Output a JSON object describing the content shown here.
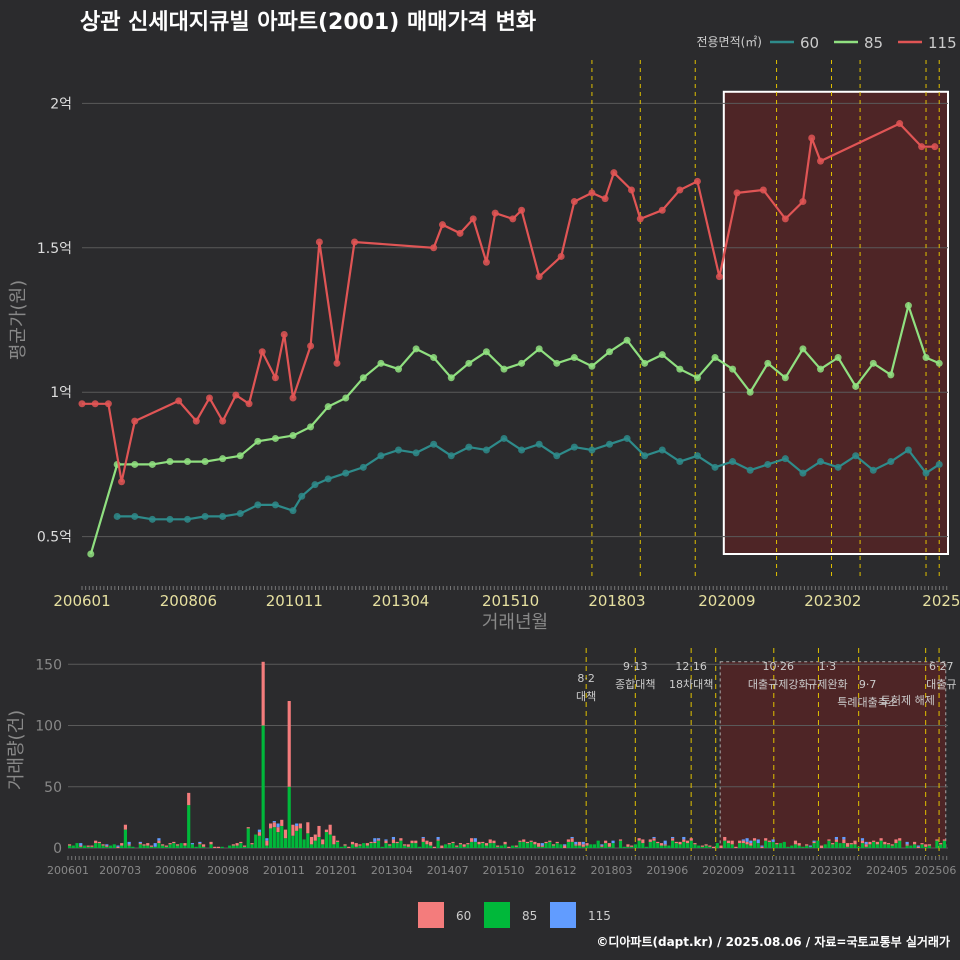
{
  "title": "상관 신세대지큐빌 아파트(2001) 매매가격 변화",
  "credit": "©디아파트(dapt.kr) / 2025.08.06 / 자료=국토교통부 실거래가",
  "colors": {
    "background": "#2b2b2d",
    "grid": "#5a5a5a",
    "series_60": "#2e8b8b",
    "series_85": "#90e080",
    "series_115": "#e05555",
    "bar_60": "#f47c7c",
    "bar_85": "#00b83a",
    "bar_115": "#619cff",
    "policy_line": "#e0c000",
    "highlight_box": "#6b2020"
  },
  "chart_data": [
    {
      "type": "line",
      "ylabel": "평균가(원)",
      "xlabel": "거래년월",
      "legend_title": "전용면적(㎡)",
      "legend_position": "top-right",
      "x_ticks": [
        "200601",
        "200806",
        "201011",
        "201304",
        "201510",
        "201803",
        "202009",
        "202302",
        "2025"
      ],
      "y_ticks": [
        {
          "value": 0.5,
          "label": "0.5억"
        },
        {
          "value": 1.0,
          "label": "1억"
        },
        {
          "value": 1.5,
          "label": "1.5억"
        },
        {
          "value": 2.0,
          "label": "2억"
        }
      ],
      "ylim": [
        0.35,
        2.15
      ],
      "xlim": [
        2006.0,
        2025.7
      ],
      "highlight_range": [
        2020.6,
        2025.7
      ],
      "policy_lines": [
        2017.6,
        2018.7,
        2019.95,
        2021.8,
        2023.05,
        2023.7,
        2025.2,
        2025.5
      ],
      "series": [
        {
          "name": "60",
          "points": [
            [
              2006.8,
              0.57
            ],
            [
              2007.2,
              0.57
            ],
            [
              2007.6,
              0.56
            ],
            [
              2008.0,
              0.56
            ],
            [
              2008.4,
              0.56
            ],
            [
              2008.8,
              0.57
            ],
            [
              2009.2,
              0.57
            ],
            [
              2009.6,
              0.58
            ],
            [
              2010.0,
              0.61
            ],
            [
              2010.4,
              0.61
            ],
            [
              2010.8,
              0.59
            ],
            [
              2011.0,
              0.64
            ],
            [
              2011.3,
              0.68
            ],
            [
              2011.6,
              0.7
            ],
            [
              2012.0,
              0.72
            ],
            [
              2012.4,
              0.74
            ],
            [
              2012.8,
              0.78
            ],
            [
              2013.2,
              0.8
            ],
            [
              2013.6,
              0.79
            ],
            [
              2014.0,
              0.82
            ],
            [
              2014.4,
              0.78
            ],
            [
              2014.8,
              0.81
            ],
            [
              2015.2,
              0.8
            ],
            [
              2015.6,
              0.84
            ],
            [
              2016.0,
              0.8
            ],
            [
              2016.4,
              0.82
            ],
            [
              2016.8,
              0.78
            ],
            [
              2017.2,
              0.81
            ],
            [
              2017.6,
              0.8
            ],
            [
              2018.0,
              0.82
            ],
            [
              2018.4,
              0.84
            ],
            [
              2018.8,
              0.78
            ],
            [
              2019.2,
              0.8
            ],
            [
              2019.6,
              0.76
            ],
            [
              2020.0,
              0.78
            ],
            [
              2020.4,
              0.74
            ],
            [
              2020.8,
              0.76
            ],
            [
              2021.2,
              0.73
            ],
            [
              2021.6,
              0.75
            ],
            [
              2022.0,
              0.77
            ],
            [
              2022.4,
              0.72
            ],
            [
              2022.8,
              0.76
            ],
            [
              2023.2,
              0.74
            ],
            [
              2023.6,
              0.78
            ],
            [
              2024.0,
              0.73
            ],
            [
              2024.4,
              0.76
            ],
            [
              2024.8,
              0.8
            ],
            [
              2025.2,
              0.72
            ],
            [
              2025.5,
              0.75
            ]
          ]
        },
        {
          "name": "85",
          "points": [
            [
              2006.2,
              0.44
            ],
            [
              2006.8,
              0.75
            ],
            [
              2007.2,
              0.75
            ],
            [
              2007.6,
              0.75
            ],
            [
              2008.0,
              0.76
            ],
            [
              2008.4,
              0.76
            ],
            [
              2008.8,
              0.76
            ],
            [
              2009.2,
              0.77
            ],
            [
              2009.6,
              0.78
            ],
            [
              2010.0,
              0.83
            ],
            [
              2010.4,
              0.84
            ],
            [
              2010.8,
              0.85
            ],
            [
              2011.2,
              0.88
            ],
            [
              2011.6,
              0.95
            ],
            [
              2012.0,
              0.98
            ],
            [
              2012.4,
              1.05
            ],
            [
              2012.8,
              1.1
            ],
            [
              2013.2,
              1.08
            ],
            [
              2013.6,
              1.15
            ],
            [
              2014.0,
              1.12
            ],
            [
              2014.4,
              1.05
            ],
            [
              2014.8,
              1.1
            ],
            [
              2015.2,
              1.14
            ],
            [
              2015.6,
              1.08
            ],
            [
              2016.0,
              1.1
            ],
            [
              2016.4,
              1.15
            ],
            [
              2016.8,
              1.1
            ],
            [
              2017.2,
              1.12
            ],
            [
              2017.6,
              1.09
            ],
            [
              2018.0,
              1.14
            ],
            [
              2018.4,
              1.18
            ],
            [
              2018.8,
              1.1
            ],
            [
              2019.2,
              1.13
            ],
            [
              2019.6,
              1.08
            ],
            [
              2020.0,
              1.05
            ],
            [
              2020.4,
              1.12
            ],
            [
              2020.8,
              1.08
            ],
            [
              2021.2,
              1.0
            ],
            [
              2021.6,
              1.1
            ],
            [
              2022.0,
              1.05
            ],
            [
              2022.4,
              1.15
            ],
            [
              2022.8,
              1.08
            ],
            [
              2023.2,
              1.12
            ],
            [
              2023.6,
              1.02
            ],
            [
              2024.0,
              1.1
            ],
            [
              2024.4,
              1.06
            ],
            [
              2024.8,
              1.3
            ],
            [
              2025.2,
              1.12
            ],
            [
              2025.5,
              1.1
            ]
          ]
        },
        {
          "name": "115",
          "points": [
            [
              2006.0,
              0.96
            ],
            [
              2006.3,
              0.96
            ],
            [
              2006.6,
              0.96
            ],
            [
              2006.9,
              0.69
            ],
            [
              2007.2,
              0.9
            ],
            [
              2008.2,
              0.97
            ],
            [
              2008.6,
              0.9
            ],
            [
              2008.9,
              0.98
            ],
            [
              2009.2,
              0.9
            ],
            [
              2009.5,
              0.99
            ],
            [
              2009.8,
              0.96
            ],
            [
              2010.1,
              1.14
            ],
            [
              2010.4,
              1.05
            ],
            [
              2010.6,
              1.2
            ],
            [
              2010.8,
              0.98
            ],
            [
              2011.2,
              1.16
            ],
            [
              2011.4,
              1.52
            ],
            [
              2011.8,
              1.1
            ],
            [
              2012.2,
              1.52
            ],
            [
              2014.0,
              1.5
            ],
            [
              2014.2,
              1.58
            ],
            [
              2014.6,
              1.55
            ],
            [
              2014.9,
              1.6
            ],
            [
              2015.2,
              1.45
            ],
            [
              2015.4,
              1.62
            ],
            [
              2015.8,
              1.6
            ],
            [
              2016.0,
              1.63
            ],
            [
              2016.4,
              1.4
            ],
            [
              2016.9,
              1.47
            ],
            [
              2017.2,
              1.66
            ],
            [
              2017.6,
              1.69
            ],
            [
              2017.9,
              1.67
            ],
            [
              2018.1,
              1.76
            ],
            [
              2018.5,
              1.7
            ],
            [
              2018.7,
              1.6
            ],
            [
              2019.2,
              1.63
            ],
            [
              2019.6,
              1.7
            ],
            [
              2020.0,
              1.73
            ],
            [
              2020.5,
              1.4
            ],
            [
              2020.9,
              1.69
            ],
            [
              2021.5,
              1.7
            ],
            [
              2022.0,
              1.6
            ],
            [
              2022.4,
              1.66
            ],
            [
              2022.6,
              1.88
            ],
            [
              2022.8,
              1.8
            ],
            [
              2024.6,
              1.93
            ],
            [
              2025.1,
              1.85
            ],
            [
              2025.4,
              1.85
            ]
          ]
        }
      ]
    },
    {
      "type": "bar",
      "ylabel": "거래량(건)",
      "stacked": true,
      "ylim": [
        0,
        160
      ],
      "y_ticks": [
        0,
        50,
        100,
        150
      ],
      "x_ticks": [
        "200601",
        "200703",
        "200806",
        "200908",
        "201011",
        "201201",
        "201304",
        "201407",
        "201510",
        "201612",
        "201803",
        "201906",
        "202009",
        "202111",
        "202302",
        "202405",
        "202506"
      ],
      "legend_position": "bottom",
      "legend": [
        "60",
        "85",
        "115"
      ],
      "annotations": [
        {
          "date": "8·2",
          "label": "대책"
        },
        {
          "date": "9·13",
          "label": "종합대책"
        },
        {
          "date": "12·16",
          "label": "18차대책"
        },
        {
          "date": "10·26",
          "label": "대출규제강화"
        },
        {
          "date": "1·3",
          "label": "규제완화"
        },
        {
          "date": "9·7",
          "label": "특례대출축소"
        },
        {
          "date": "",
          "label": "토허제 해제"
        },
        {
          "date": "6·27",
          "label": "대출규"
        }
      ],
      "notable_values": [
        {
          "period": "2010-05",
          "series_60": 52,
          "series_85": 100,
          "series_115": 0
        },
        {
          "period": "2010-12",
          "series_60": 70,
          "series_85": 50,
          "series_115": 0
        },
        {
          "period": "2008-09",
          "series_60": 10,
          "series_85": 35,
          "series_115": 0
        },
        {
          "period": "2007-04",
          "series_60": 4,
          "series_85": 15,
          "series_115": 0
        }
      ]
    }
  ]
}
